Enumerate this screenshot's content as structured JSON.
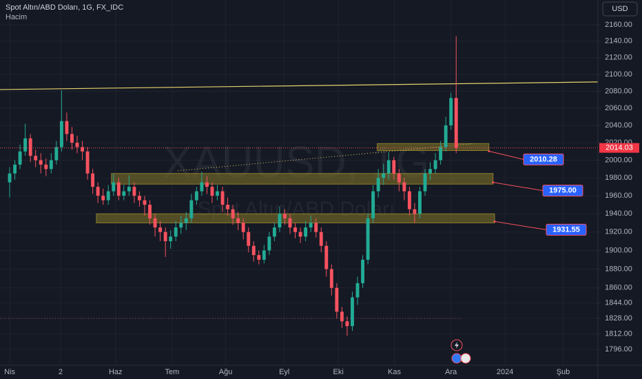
{
  "header": {
    "title": "Spot Altın/ABD Doları, 1G, FX_IDC",
    "indicator": "Hacim",
    "currency": "USD"
  },
  "chart_data": {
    "type": "candlestick",
    "watermark": [
      "XAUUSD, 1G",
      "Spot Altın/ABD Doları"
    ],
    "log_scale": true,
    "grid": true,
    "up_color": "#22ab94",
    "down_color": "#f7525f",
    "open": [
      1975,
      1985,
      1995,
      2010,
      2025,
      2005,
      2000,
      1995,
      1990,
      2000,
      2015,
      2045,
      2030,
      2020,
      2015,
      2010,
      1985,
      1970,
      1960,
      1955,
      1965,
      1975,
      1960,
      1965,
      1970,
      1960,
      1955,
      1950,
      1935,
      1925,
      1920,
      1910,
      1915,
      1925,
      1930,
      1935,
      1955,
      1965,
      1975,
      1970,
      1960,
      1965,
      1950,
      1945,
      1935,
      1930,
      1920,
      1905,
      1895,
      1890,
      1900,
      1915,
      1925,
      1940,
      1935,
      1925,
      1920,
      1915,
      1925,
      1930,
      1920,
      1905,
      1880,
      1860,
      1835,
      1825,
      1820,
      1850,
      1865,
      1890,
      1935,
      1965,
      1980,
      1985,
      2000,
      1985,
      1975,
      1965,
      1945,
      1940,
      1965,
      1985,
      1990,
      2000,
      2015,
      2040,
      2072
    ],
    "high": [
      1992,
      2000,
      2018,
      2042,
      2030,
      2012,
      2008,
      2002,
      2008,
      2022,
      2081,
      2055,
      2038,
      2028,
      2022,
      2015,
      1990,
      1975,
      1968,
      1972,
      1985,
      1980,
      1972,
      1983,
      1975,
      1965,
      1960,
      1955,
      1940,
      1932,
      1925,
      1922,
      1932,
      1938,
      1942,
      1962,
      1970,
      1987,
      1982,
      1975,
      1972,
      1970,
      1958,
      1950,
      1942,
      1935,
      1925,
      1910,
      1900,
      1906,
      1920,
      1930,
      1948,
      1945,
      1940,
      1930,
      1925,
      1932,
      1938,
      1935,
      1925,
      1910,
      1885,
      1865,
      1840,
      1830,
      1856,
      1872,
      1895,
      1940,
      1972,
      1990,
      1996,
      2009,
      2004,
      1990,
      1980,
      1970,
      1952,
      1970,
      1990,
      1998,
      2008,
      2022,
      2050,
      2078,
      2146
    ],
    "low": [
      1958,
      1978,
      1990,
      2005,
      1998,
      1992,
      1985,
      1982,
      1985,
      1995,
      2010,
      2022,
      2012,
      2008,
      2000,
      1978,
      1962,
      1952,
      1950,
      1950,
      1960,
      1955,
      1955,
      1960,
      1952,
      1948,
      1938,
      1928,
      1915,
      1910,
      1893,
      1902,
      1910,
      1918,
      1922,
      1930,
      1950,
      1960,
      1962,
      1952,
      1955,
      1942,
      1938,
      1928,
      1922,
      1912,
      1898,
      1888,
      1885,
      1886,
      1895,
      1910,
      1920,
      1928,
      1918,
      1913,
      1908,
      1910,
      1920,
      1914,
      1898,
      1872,
      1852,
      1828,
      1818,
      1810,
      1815,
      1842,
      1860,
      1885,
      1930,
      1958,
      1972,
      1978,
      1978,
      1965,
      1955,
      1938,
      1930,
      1935,
      1960,
      1978,
      1985,
      1995,
      2010,
      2035,
      2008
    ],
    "close": [
      1985,
      1995,
      2010,
      2025,
      2005,
      2000,
      1995,
      1990,
      2000,
      2015,
      2045,
      2030,
      2020,
      2015,
      2010,
      1985,
      1970,
      1960,
      1955,
      1965,
      1975,
      1960,
      1965,
      1970,
      1960,
      1955,
      1950,
      1935,
      1925,
      1920,
      1910,
      1915,
      1925,
      1930,
      1935,
      1955,
      1965,
      1975,
      1970,
      1960,
      1965,
      1950,
      1945,
      1935,
      1930,
      1920,
      1905,
      1895,
      1890,
      1900,
      1915,
      1925,
      1940,
      1935,
      1925,
      1920,
      1915,
      1925,
      1930,
      1920,
      1905,
      1880,
      1860,
      1835,
      1825,
      1820,
      1850,
      1865,
      1890,
      1935,
      1965,
      1980,
      1985,
      2000,
      1985,
      1975,
      1965,
      1945,
      1940,
      1965,
      1985,
      1990,
      2000,
      2015,
      2040,
      2072,
      2014
    ],
    "xlim": [
      -1.86,
      113.3
    ],
    "xticks": [
      {
        "value": 0,
        "label": "Nis"
      },
      {
        "value": 9.8,
        "label": "2"
      },
      {
        "value": 20.4,
        "label": "Haz"
      },
      {
        "value": 31.3,
        "label": "Tem"
      },
      {
        "value": 41.6,
        "label": "Ağu"
      },
      {
        "value": 52.9,
        "label": "Eyl"
      },
      {
        "value": 63.3,
        "label": "Eki"
      },
      {
        "value": 74.1,
        "label": "Kas"
      },
      {
        "value": 85,
        "label": "Ara"
      },
      {
        "value": 95.4,
        "label": "2024"
      },
      {
        "value": 106.6,
        "label": "Şub"
      }
    ],
    "ylim": [
      1780,
      2190.7
    ],
    "yticks": [
      {
        "value": 2160,
        "label": "2160.00"
      },
      {
        "value": 2140,
        "label": "2140.00"
      },
      {
        "value": 2120,
        "label": "2120.00"
      },
      {
        "value": 2100,
        "label": "2100.00"
      },
      {
        "value": 2080,
        "label": "2080.00"
      },
      {
        "value": 2060,
        "label": "2060.00"
      },
      {
        "value": 2040,
        "label": "2040.00"
      },
      {
        "value": 2020,
        "label": "2020.00"
      },
      {
        "value": 2000,
        "label": "2000.00"
      },
      {
        "value": 1980,
        "label": "1980.00"
      },
      {
        "value": 1960,
        "label": "1960.00"
      },
      {
        "value": 1940,
        "label": "1940.00"
      },
      {
        "value": 1920,
        "label": "1920.00"
      },
      {
        "value": 1900,
        "label": "1900.00"
      },
      {
        "value": 1880,
        "label": "1880.00"
      },
      {
        "value": 1860,
        "label": "1860.00"
      },
      {
        "value": 1844,
        "label": "1844.00"
      },
      {
        "value": 1828,
        "label": "1828.00"
      },
      {
        "value": 1812,
        "label": "1812.00"
      },
      {
        "value": 1796,
        "label": "1796.00"
      }
    ],
    "last_price": 2014.03,
    "levels": [
      2010.28,
      {
        "value": 1975,
        "label": "1975.00"
      },
      1931.55
    ],
    "zones": [
      {
        "start": 70.8,
        "end": 92.3,
        "low": 2011,
        "high": 2019
      },
      {
        "start": 19.6,
        "end": 93.1,
        "low": 1973,
        "high": 1985
      },
      {
        "start": 16.7,
        "end": 93.4,
        "low": 1930,
        "high": 1940
      }
    ],
    "trendlines": [
      {
        "x": [
          -1.86,
          113.3
        ],
        "y": [
          2082,
          2091
        ],
        "color": "#e6d36c",
        "style": "solid"
      },
      {
        "x": [
          32.4,
          89.4
        ],
        "y": [
          1988,
          2019
        ],
        "color": "#e6d36c",
        "style": "dotted"
      }
    ],
    "hline": 1828
  }
}
